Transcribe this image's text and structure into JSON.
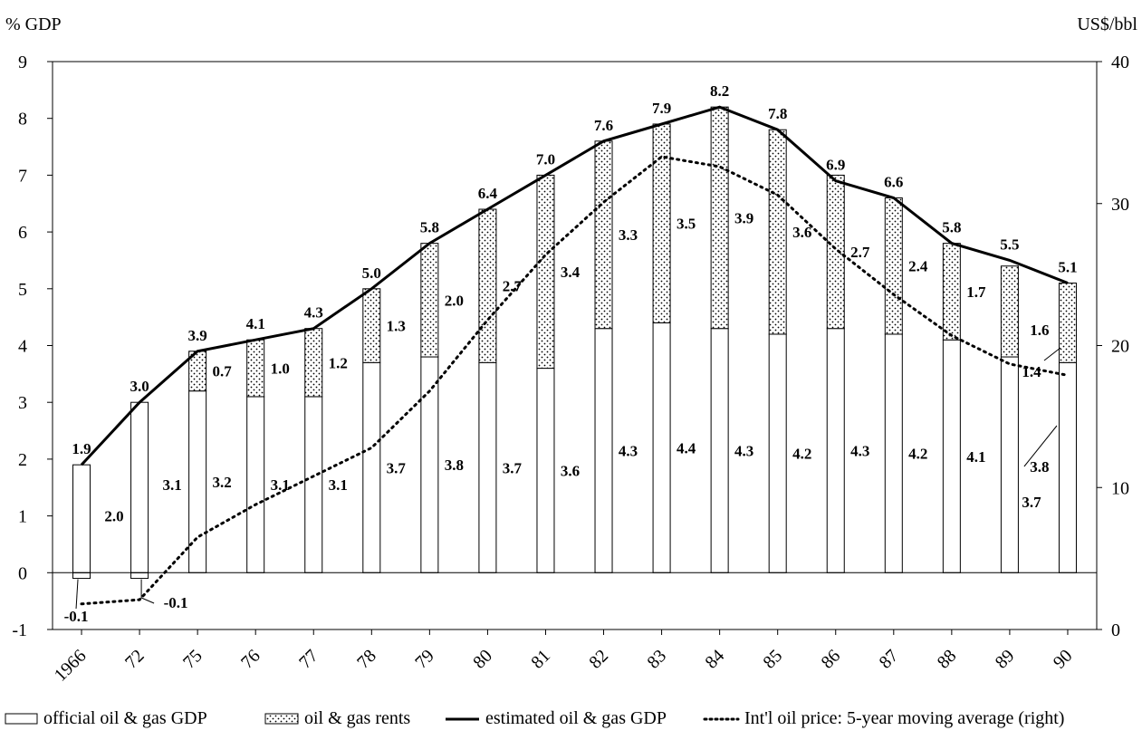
{
  "chart_data": {
    "type": "bar",
    "ylabel_left": "% GDP",
    "ylabel_right": "US$/bbl",
    "ylim_left": [
      -1,
      9
    ],
    "ylim_right": [
      0,
      40
    ],
    "yticks_left": [
      "-1",
      "0",
      "1",
      "2",
      "3",
      "4",
      "5",
      "6",
      "7",
      "8",
      "9"
    ],
    "yticks_right": [
      "0",
      "10",
      "20",
      "30",
      "40"
    ],
    "categories": [
      "1966",
      "72",
      "75",
      "76",
      "77",
      "78",
      "79",
      "80",
      "81",
      "82",
      "83",
      "84",
      "85",
      "86",
      "87",
      "88",
      "89",
      "90"
    ],
    "series": [
      {
        "name": "official oil & gas GDP",
        "kind": "bar",
        "values": [
          -0.1,
          -0.1,
          3.2,
          3.1,
          3.1,
          3.7,
          3.8,
          3.7,
          3.6,
          4.3,
          4.4,
          4.3,
          4.2,
          4.3,
          4.2,
          4.1,
          3.8,
          3.7
        ],
        "labels": [
          "-0.1",
          "-0.1",
          "3.2",
          "3.1",
          "3.1",
          "3.7",
          "3.8",
          "3.7",
          "3.6",
          "4.3",
          "4.4",
          "4.3",
          "4.2",
          "4.3",
          "4.2",
          "4.1",
          "3.8",
          "3.7"
        ]
      },
      {
        "name": "oil & gas rents",
        "kind": "stacked-bar",
        "values": [
          2.0,
          3.1,
          0.7,
          1.0,
          1.2,
          1.3,
          2.0,
          2.7,
          3.4,
          3.3,
          3.5,
          3.9,
          3.6,
          2.7,
          2.4,
          1.7,
          1.6,
          1.4
        ],
        "labels": [
          "2.0",
          "3.1",
          "0.7",
          "1.0",
          "1.2",
          "1.3",
          "2.0",
          "2.7",
          "3.4",
          "3.3",
          "3.5",
          "3.9",
          "3.6",
          "2.7",
          "2.4",
          "1.7",
          "1.6",
          "1.4"
        ]
      },
      {
        "name": "estimated oil & gas GDP",
        "kind": "line",
        "values": [
          1.9,
          3.0,
          3.9,
          4.1,
          4.3,
          5.0,
          5.8,
          6.4,
          7.0,
          7.6,
          7.9,
          8.2,
          7.8,
          6.9,
          6.6,
          5.8,
          5.5,
          5.1
        ],
        "labels": [
          "1.9",
          "3.0",
          "3.9",
          "4.1",
          "4.3",
          "5.0",
          "5.8",
          "6.4",
          "7.0",
          "7.6",
          "7.9",
          "8.2",
          "7.8",
          "6.9",
          "6.6",
          "5.8",
          "5.5",
          "5.1"
        ]
      },
      {
        "name": "Int'l oil price: 5-year moving average (right)",
        "kind": "dotted-line",
        "axis": "right",
        "values": [
          1.8,
          2.1,
          6.5,
          8.8,
          10.8,
          12.8,
          16.8,
          21.8,
          26.4,
          30.1,
          33.3,
          32.6,
          30.6,
          26.8,
          23.6,
          20.7,
          18.7,
          17.9
        ]
      }
    ],
    "legend": [
      {
        "label": "official oil & gas GDP",
        "symbol": "open-box"
      },
      {
        "label": "oil & gas rents",
        "symbol": "dotted-box"
      },
      {
        "label": "estimated oil & gas GDP",
        "symbol": "solid-line"
      },
      {
        "label": "Int'l oil price: 5-year moving average (right)",
        "symbol": "dotted-line"
      }
    ],
    "legend_position": "bottom",
    "grid": false
  }
}
